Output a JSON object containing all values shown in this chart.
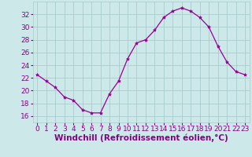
{
  "x": [
    0,
    1,
    2,
    3,
    4,
    5,
    6,
    7,
    8,
    9,
    10,
    11,
    12,
    13,
    14,
    15,
    16,
    17,
    18,
    19,
    20,
    21,
    22,
    23
  ],
  "y": [
    22.5,
    21.5,
    20.5,
    19.0,
    18.5,
    17.0,
    16.5,
    16.5,
    19.5,
    21.5,
    25.0,
    27.5,
    28.0,
    29.5,
    31.5,
    32.5,
    33.0,
    32.5,
    31.5,
    30.0,
    27.0,
    24.5,
    23.0,
    22.5
  ],
  "line_color": "#990099",
  "marker": "*",
  "marker_size": 3,
  "bg_color": "#cce8e8",
  "grid_color": "#aacccc",
  "xlabel": "Windchill (Refroidissement éolien,°C)",
  "xlabel_color": "#880088",
  "yticks": [
    16,
    18,
    20,
    22,
    24,
    26,
    28,
    30,
    32
  ],
  "ylim": [
    15.0,
    34.0
  ],
  "xlim": [
    -0.5,
    23.5
  ],
  "tick_color": "#880088",
  "tick_fontsize": 6.5,
  "xlabel_fontsize": 7.5
}
